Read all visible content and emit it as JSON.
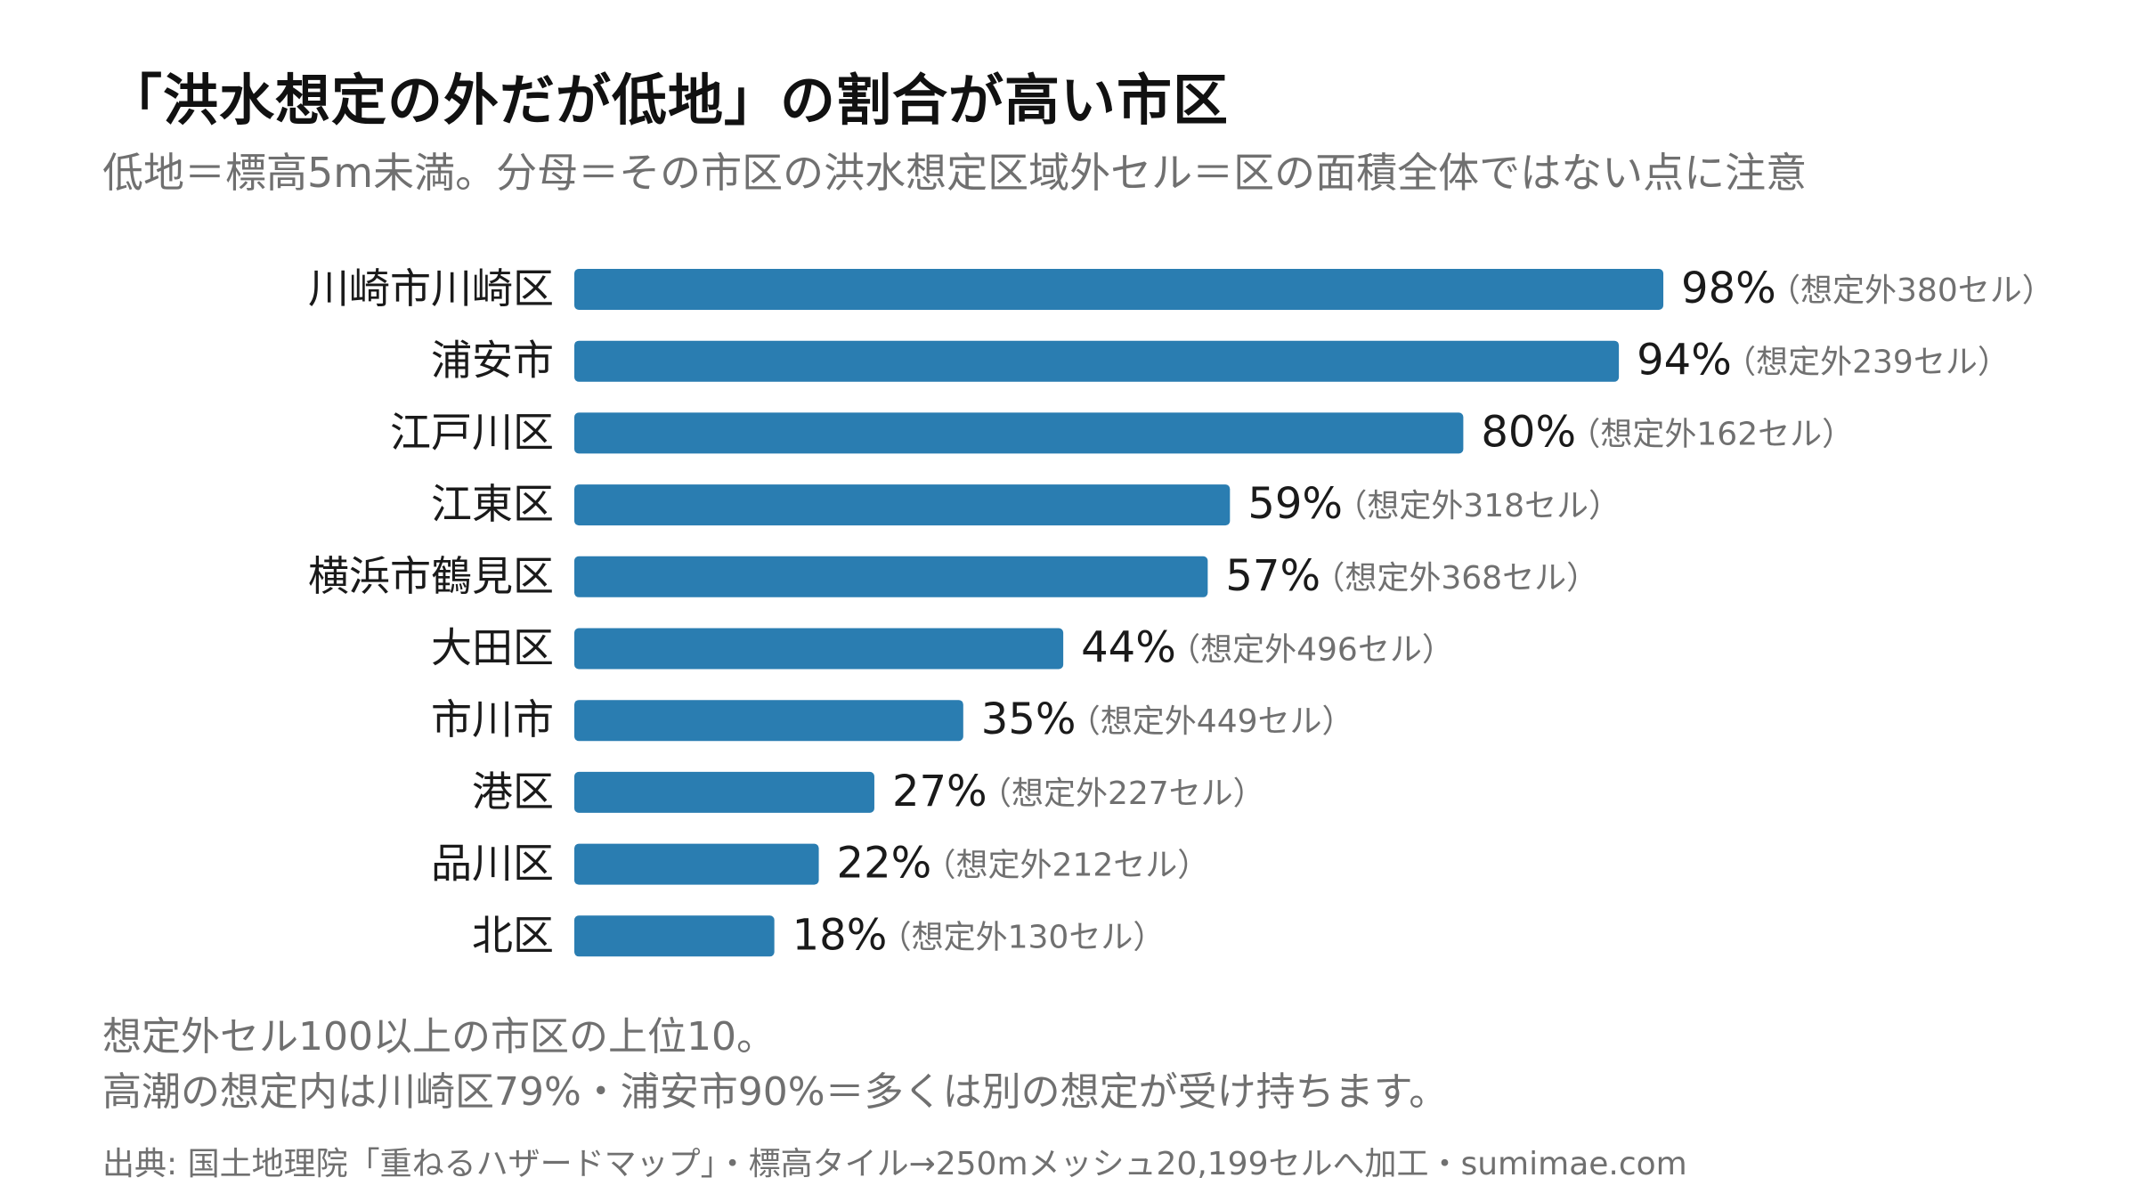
{
  "title": "「洪水想定の外だが低地」の割合が高い市区",
  "subtitle": "低地＝標高5m未満。分母＝その市区の洪水想定区域外セル＝区の面積全体ではない点に注意",
  "notes": [
    "想定外セル100以上の市区の上位10。",
    "高潮の想定内は川崎区79%・浦安市90%＝多くは別の想定が受け持ちます。"
  ],
  "source": "出典: 国土地理院「重ねるハザードマップ」・標高タイル→250mメッシュ20,199セルへ加工・sumimae.com",
  "chart_data": {
    "type": "bar",
    "orientation": "horizontal",
    "categories": [
      "川崎市川崎区",
      "浦安市",
      "江戸川区",
      "江東区",
      "横浜市鶴見区",
      "大田区",
      "市川市",
      "港区",
      "品川区",
      "北区"
    ],
    "values": [
      98,
      94,
      80,
      59,
      57,
      44,
      35,
      27,
      22,
      18
    ],
    "value_labels": [
      "98%",
      "94%",
      "80%",
      "59%",
      "57%",
      "44%",
      "35%",
      "27%",
      "22%",
      "18%"
    ],
    "annotations": [
      "（想定外380セル）",
      "（想定外239セル）",
      "（想定外162セル）",
      "（想定外318セル）",
      "（想定外368セル）",
      "（想定外496セル）",
      "（想定外449セル）",
      "（想定外227セル）",
      "（想定外212セル）",
      "（想定外130セル）"
    ],
    "xlim": [
      0,
      100
    ],
    "grid": false,
    "bar_color": "#2a7db1"
  }
}
